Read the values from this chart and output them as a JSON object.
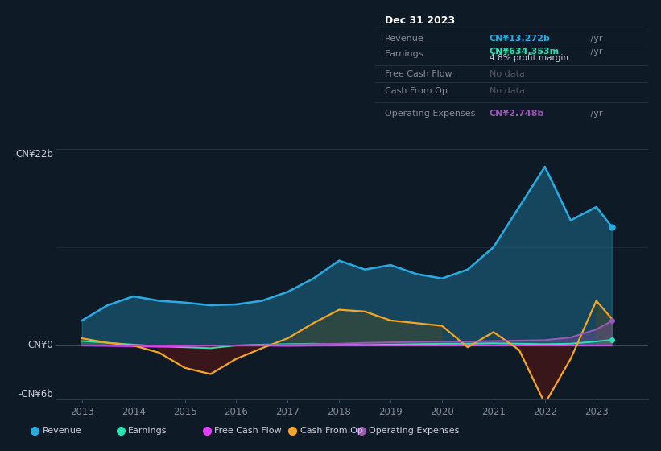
{
  "background_color": "#0e1a26",
  "plot_bg_color": "#0e1a26",
  "years": [
    2013.0,
    2013.5,
    2014.0,
    2014.5,
    2015.0,
    2015.5,
    2016.0,
    2016.5,
    2017.0,
    2017.5,
    2018.0,
    2018.5,
    2019.0,
    2019.5,
    2020.0,
    2020.5,
    2021.0,
    2021.5,
    2022.0,
    2022.5,
    2023.0,
    2023.3
  ],
  "revenue": [
    2.8,
    4.5,
    5.5,
    5.0,
    4.8,
    4.5,
    4.6,
    5.0,
    6.0,
    7.5,
    9.5,
    8.5,
    9.0,
    8.0,
    7.5,
    8.5,
    11.0,
    15.5,
    20.0,
    14.0,
    15.5,
    13.272
  ],
  "earnings": [
    0.5,
    0.3,
    0.1,
    -0.1,
    -0.2,
    -0.3,
    0.0,
    0.1,
    0.15,
    0.2,
    0.1,
    0.05,
    0.1,
    0.15,
    0.2,
    0.2,
    0.25,
    0.2,
    0.15,
    0.2,
    0.45,
    0.634
  ],
  "free_cash_flow": [
    0.0,
    -0.05,
    -0.1,
    -0.15,
    -0.08,
    -0.02,
    -0.02,
    -0.02,
    -0.05,
    -0.02,
    0.0,
    0.0,
    0.0,
    0.0,
    0.0,
    0.0,
    0.0,
    0.0,
    0.0,
    0.0,
    0.0,
    0.0
  ],
  "cash_from_op": [
    0.8,
    0.3,
    0.0,
    -0.8,
    -2.5,
    -3.2,
    -1.5,
    -0.3,
    0.8,
    2.5,
    4.0,
    3.8,
    2.8,
    2.5,
    2.2,
    -0.2,
    1.5,
    -0.5,
    -6.5,
    -1.5,
    5.0,
    3.0
  ],
  "operating_expenses": [
    0.0,
    0.0,
    0.0,
    0.0,
    0.0,
    0.0,
    0.0,
    0.05,
    0.1,
    0.15,
    0.2,
    0.3,
    0.35,
    0.4,
    0.45,
    0.45,
    0.5,
    0.55,
    0.6,
    0.9,
    1.8,
    2.748
  ],
  "ylim": [
    -6,
    22
  ],
  "xlim": [
    2012.5,
    2024.0
  ],
  "xticks": [
    2013,
    2014,
    2015,
    2016,
    2017,
    2018,
    2019,
    2020,
    2021,
    2022,
    2023
  ],
  "revenue_color": "#29abe2",
  "earnings_color": "#2de0b0",
  "free_cash_flow_color": "#e040fb",
  "cash_from_op_color": "#f5a623",
  "operating_expenses_color": "#9b59b6",
  "info_box": {
    "date": "Dec 31 2023",
    "revenue_label": "Revenue",
    "revenue_value": "CN¥13.272b",
    "revenue_unit": " /yr",
    "earnings_label": "Earnings",
    "earnings_value": "CN¥634.353m",
    "earnings_unit": " /yr",
    "profit_margin": "4.8% profit margin",
    "fcf_label": "Free Cash Flow",
    "fcf_value": "No data",
    "cash_op_label": "Cash From Op",
    "cash_op_value": "No data",
    "opex_label": "Operating Expenses",
    "opex_value": "CN¥2.748b",
    "opex_unit": " /yr"
  },
  "legend_items": [
    "Revenue",
    "Earnings",
    "Free Cash Flow",
    "Cash From Op",
    "Operating Expenses"
  ],
  "legend_colors": [
    "#29abe2",
    "#2de0b0",
    "#e040fb",
    "#f5a623",
    "#9b59b6"
  ]
}
